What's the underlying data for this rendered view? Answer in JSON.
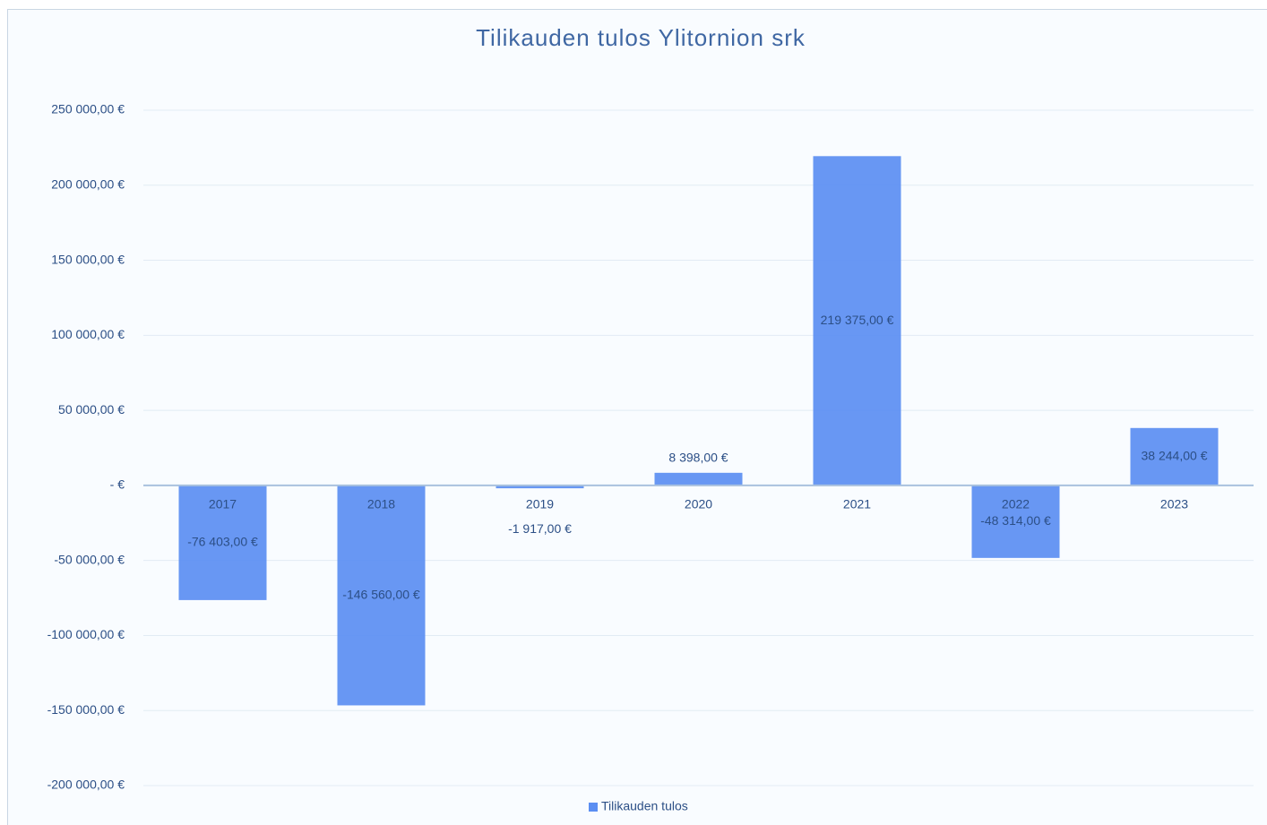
{
  "chart_data": {
    "type": "bar",
    "title": "Tilikauden tulos Ylitornion srk",
    "categories": [
      "2017",
      "2018",
      "2019",
      "2020",
      "2021",
      "2022",
      "2023"
    ],
    "series": [
      {
        "name": "Tilikauden tulos",
        "color": "#5b8ef2",
        "values": [
          -76403,
          -146560,
          -1917,
          8398,
          219375,
          -48314,
          38244
        ],
        "value_labels": [
          "-76 403,00 €",
          "-146 560,00 €",
          "-1 917,00 €",
          "8 398,00 €",
          "219 375,00 €",
          "-48 314,00 €",
          "38 244,00 €"
        ]
      }
    ],
    "ylim": [
      -200000,
      250000
    ],
    "yticks": [
      {
        "value": -200000,
        "label": "-200 000,00 €"
      },
      {
        "value": -150000,
        "label": "-150 000,00 €"
      },
      {
        "value": -100000,
        "label": "-100 000,00 €"
      },
      {
        "value": -50000,
        "label": "-50 000,00 €"
      },
      {
        "value": 0,
        "label": "-   €"
      },
      {
        "value": 50000,
        "label": "50 000,00 €"
      },
      {
        "value": 100000,
        "label": "100 000,00 €"
      },
      {
        "value": 150000,
        "label": "150 000,00 €"
      },
      {
        "value": 200000,
        "label": "200 000,00 €"
      },
      {
        "value": 250000,
        "label": "250 000,00 €"
      }
    ],
    "grid": true,
    "legend": "bottom"
  }
}
